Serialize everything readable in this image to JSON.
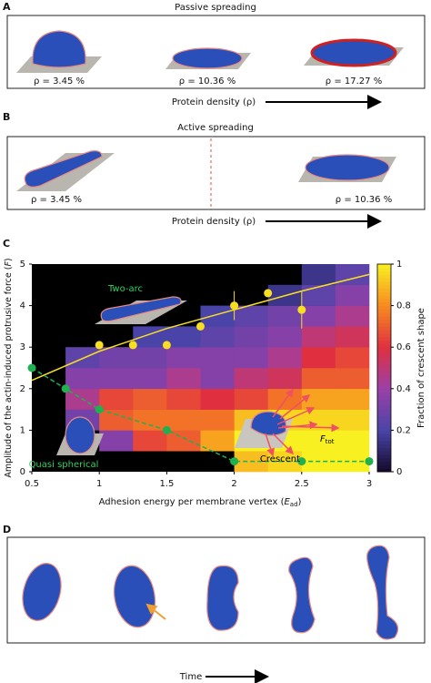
{
  "panels": {
    "A": {
      "letter": "A",
      "title": "Passive spreading",
      "labels": [
        "ρ = 3.45 %",
        "ρ = 10.36 %",
        "ρ = 17.27 %"
      ],
      "axis_label": "Protein density (ρ)"
    },
    "B": {
      "letter": "B",
      "title": "Active spreading",
      "labels": [
        "ρ = 3.45 %",
        "ρ = 10.36 %"
      ],
      "axis_label": "Protein density (ρ)"
    },
    "C": {
      "letter": "C"
    },
    "D": {
      "letter": "D",
      "axis_label": "Time"
    }
  },
  "chart_data": {
    "type": "heatmap",
    "xlabel": [
      "Adhesion energy per membrane vertex (",
      "E",
      "ad",
      ")"
    ],
    "ylabel": [
      "Amplitude of the actin-induced protrusive force (",
      "F",
      ")"
    ],
    "colorbar_label": "Fraction of crescent shape",
    "annotations": [
      "Two-arc",
      "Quasi spherical",
      "Crescent"
    ],
    "force_label": [
      "F",
      "tot"
    ],
    "xlim": [
      0.5,
      3
    ],
    "ylim": [
      0,
      5
    ],
    "xticks": [
      0.5,
      1,
      1.5,
      2,
      2.5,
      3
    ],
    "yticks": [
      0,
      1,
      2,
      3,
      4,
      5
    ],
    "clim": [
      0,
      1
    ],
    "cticks": [
      0,
      0.2,
      0.4,
      0.6,
      0.8,
      1
    ],
    "colormap": [
      {
        "value": 0,
        "color": "#14082a"
      },
      {
        "value": 0.2,
        "color": "#4a44a8"
      },
      {
        "value": 0.4,
        "color": "#9a40a8"
      },
      {
        "value": 0.6,
        "color": "#e03040"
      },
      {
        "value": 0.8,
        "color": "#f88a20"
      },
      {
        "value": 1,
        "color": "#f8f020"
      }
    ],
    "x_edges": [
      0.5,
      0.75,
      1,
      1.25,
      1.5,
      1.75,
      2,
      2.25,
      2.5,
      2.75,
      3
    ],
    "y_edges": [
      0,
      0.5,
      1,
      1.5,
      2,
      2.5,
      3,
      3.5,
      4,
      4.5,
      5
    ],
    "z": [
      [
        null,
        null,
        null,
        null,
        null,
        null,
        0.9,
        0.95,
        1,
        1
      ],
      [
        null,
        null,
        0.35,
        0.65,
        0.7,
        0.85,
        1,
        1,
        1,
        1
      ],
      [
        null,
        0.3,
        0.7,
        0.75,
        0.75,
        0.75,
        0.9,
        0.95,
        0.95,
        0.95
      ],
      [
        null,
        0.45,
        0.65,
        0.7,
        0.65,
        0.6,
        0.65,
        0.75,
        0.85,
        0.85
      ],
      [
        null,
        0.35,
        0.35,
        0.35,
        0.45,
        0.35,
        0.5,
        0.55,
        0.7,
        0.7
      ],
      [
        null,
        0.25,
        0.3,
        0.3,
        0.35,
        0.35,
        0.35,
        0.45,
        0.6,
        0.65
      ],
      [
        null,
        null,
        null,
        0.2,
        0.2,
        0.25,
        0.3,
        0.35,
        0.5,
        0.55
      ],
      [
        null,
        null,
        null,
        null,
        null,
        0.2,
        0.25,
        0.3,
        0.35,
        0.45
      ],
      [
        null,
        null,
        null,
        null,
        null,
        null,
        null,
        0.15,
        0.25,
        0.35
      ],
      [
        null,
        null,
        null,
        null,
        null,
        null,
        null,
        null,
        0.15,
        0.25
      ]
    ],
    "points": [
      {
        "color": "#f8e020",
        "x": [
          1,
          1.25,
          1.5,
          1.75,
          2,
          2.25,
          2.5
        ],
        "values": [
          3.05,
          3.05,
          3.05,
          3.5,
          4.0,
          4.3,
          3.9
        ],
        "errors": [
          null,
          null,
          null,
          null,
          0.35,
          null,
          0.45
        ],
        "fit": {
          "x": [
            0.5,
            1,
            1.5,
            2,
            2.5,
            3
          ],
          "values": [
            2.2,
            2.9,
            3.45,
            3.9,
            4.35,
            4.75
          ],
          "dashed": false
        }
      },
      {
        "color": "#20b050",
        "x": [
          0.5,
          0.75,
          1,
          1.5,
          2,
          2.5,
          3
        ],
        "values": [
          2.5,
          2.0,
          1.5,
          1.0,
          0.25,
          0.25,
          0.25
        ],
        "errors": [
          null,
          null,
          null,
          null,
          null,
          null,
          null
        ],
        "fit": {
          "x": [
            0.5,
            0.75,
            1,
            1.5,
            2,
            2.5,
            3
          ],
          "values": [
            2.5,
            2.0,
            1.5,
            1.0,
            0.25,
            0.25,
            0.25
          ],
          "dashed": true
        }
      }
    ]
  }
}
